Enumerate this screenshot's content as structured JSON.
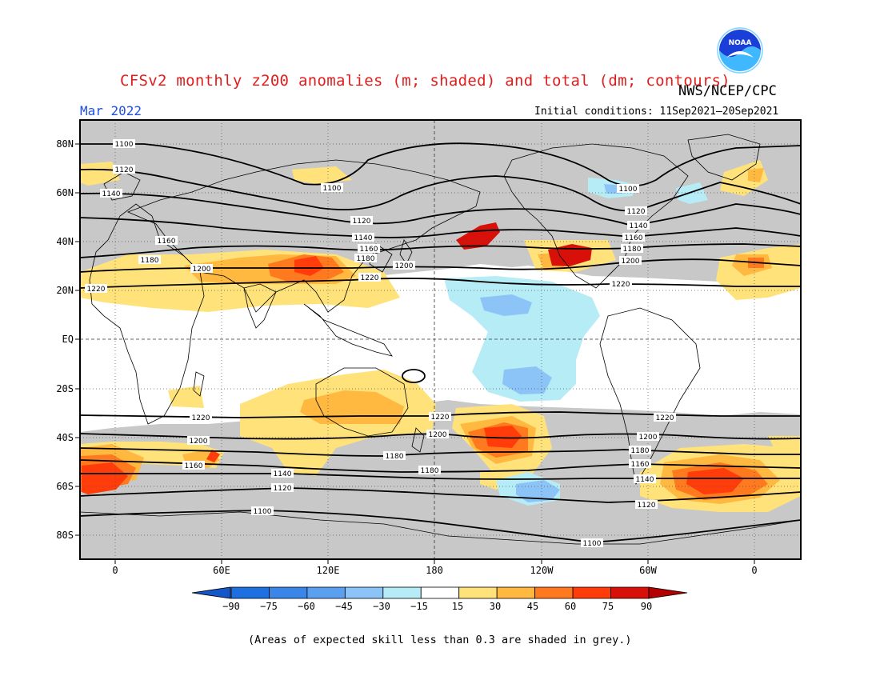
{
  "header": {
    "title": "CFSv2 monthly z200 anomalies (m; shaded) and total (dm; contours)",
    "agency": "NWS/NCEP/CPC",
    "date": "Mar 2022",
    "initial_conditions": "Initial conditions: 11Sep2021–20Sep2021",
    "logo_text": "NOAA"
  },
  "map": {
    "lat_labels": [
      "80N",
      "60N",
      "40N",
      "20N",
      "EQ",
      "20S",
      "40S",
      "60S",
      "80S"
    ],
    "lon_labels": [
      "0",
      "60E",
      "120E",
      "180",
      "120W",
      "60W",
      "0"
    ],
    "grey_meaning": "Areas of expected skill less than 0.3 are shaded in grey."
  },
  "contours": [
    {
      "value": "1100",
      "hemisphere": "N"
    },
    {
      "value": "1120",
      "hemisphere": "N"
    },
    {
      "value": "1140",
      "hemisphere": "N"
    },
    {
      "value": "1160",
      "hemisphere": "N"
    },
    {
      "value": "1180",
      "hemisphere": "N"
    },
    {
      "value": "1200",
      "hemisphere": "N"
    },
    {
      "value": "1220",
      "hemisphere": "N"
    },
    {
      "value": "1220",
      "hemisphere": "S"
    },
    {
      "value": "1200",
      "hemisphere": "S"
    },
    {
      "value": "1180",
      "hemisphere": "S"
    },
    {
      "value": "1160",
      "hemisphere": "S"
    },
    {
      "value": "1140",
      "hemisphere": "S"
    },
    {
      "value": "1120",
      "hemisphere": "S"
    },
    {
      "value": "1100",
      "hemisphere": "S"
    }
  ],
  "colorbar": {
    "ticks": [
      "−90",
      "−75",
      "−60",
      "−45",
      "−30",
      "−15",
      "15",
      "30",
      "45",
      "60",
      "75",
      "90"
    ],
    "colors": [
      "#1e6fe0",
      "#3a85e8",
      "#5a9ff0",
      "#8cc4f7",
      "#b5ecf5",
      "#ffffff",
      "#ffe37a",
      "#ffb840",
      "#ff7a1e",
      "#ff3c0a",
      "#d8100a"
    ],
    "low_extend_color": "#1457c8",
    "high_extend_color": "#b30000"
  },
  "footer": {
    "note": "(Areas of expected skill less than 0.3 are shaded in grey.)"
  }
}
